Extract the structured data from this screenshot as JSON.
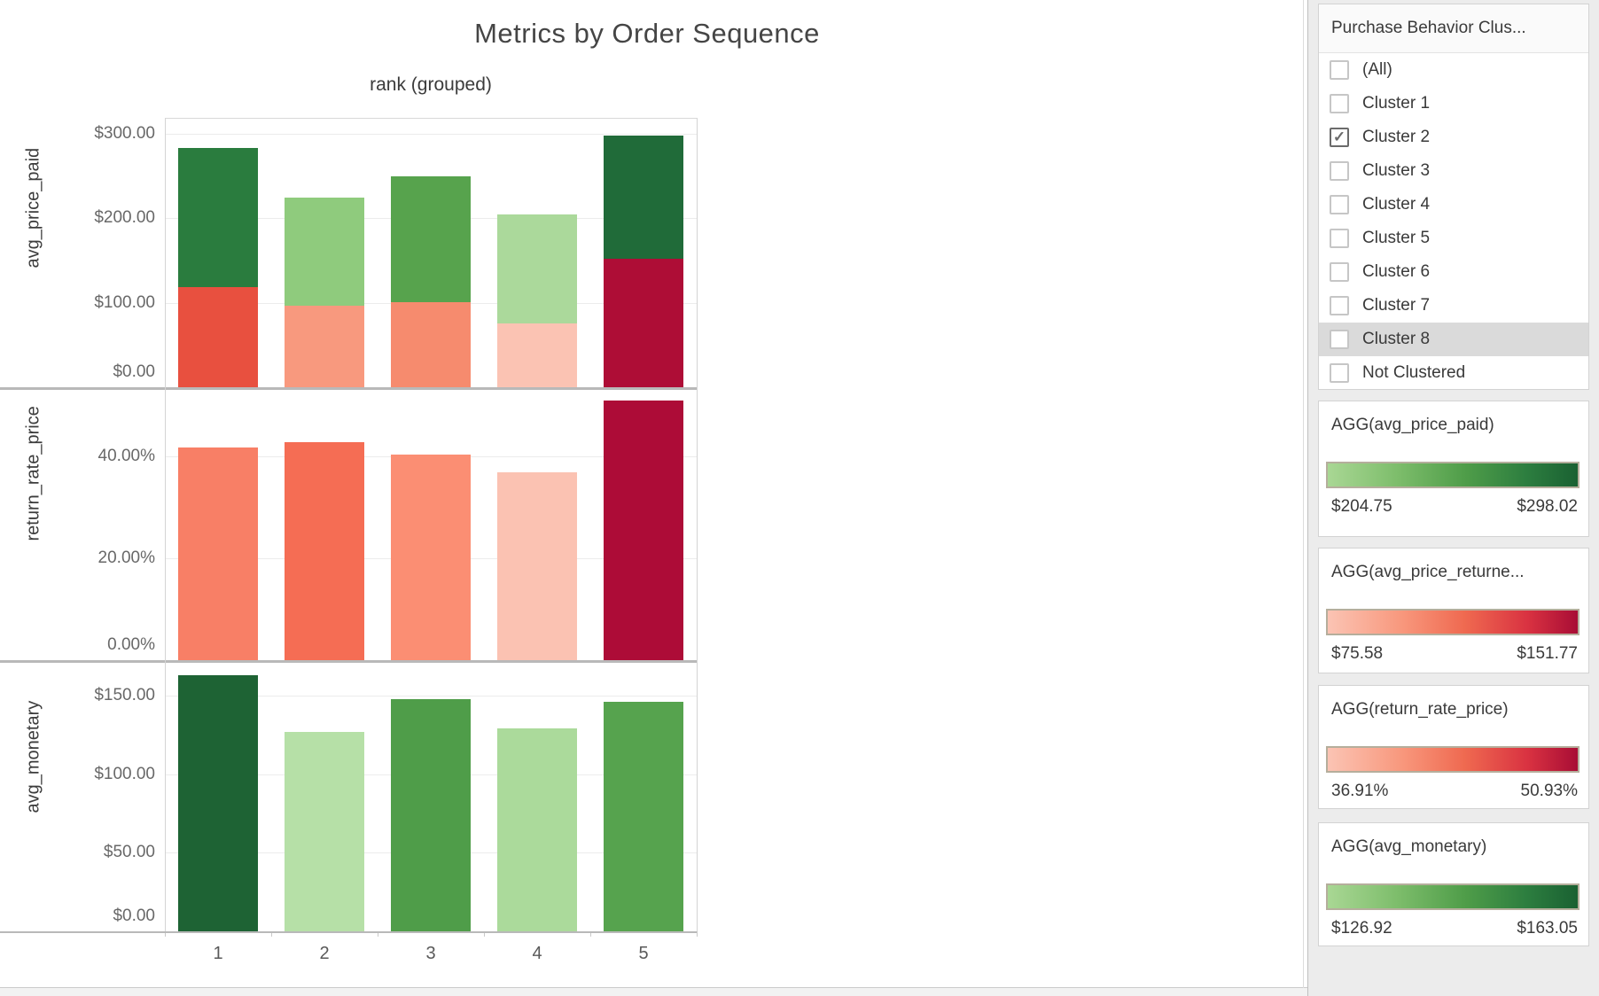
{
  "title": "Metrics by Order Sequence",
  "accent_colors": {
    "green_dark": "#1a6132",
    "green_light": "#a9d794",
    "red_dark": "#a80d35",
    "red_light": "#fbc4b4"
  },
  "filter_panel": {
    "title": "Purchase Behavior Clus...",
    "items": [
      {
        "label": "(All)",
        "checked": false,
        "highlighted": false
      },
      {
        "label": "Cluster 1",
        "checked": false,
        "highlighted": false
      },
      {
        "label": "Cluster 2",
        "checked": true,
        "highlighted": false
      },
      {
        "label": "Cluster 3",
        "checked": false,
        "highlighted": false
      },
      {
        "label": "Cluster 4",
        "checked": false,
        "highlighted": false
      },
      {
        "label": "Cluster 5",
        "checked": false,
        "highlighted": false
      },
      {
        "label": "Cluster 6",
        "checked": false,
        "highlighted": false
      },
      {
        "label": "Cluster 7",
        "checked": false,
        "highlighted": false
      },
      {
        "label": "Cluster 8",
        "checked": false,
        "highlighted": true
      },
      {
        "label": "Not Clustered",
        "checked": false,
        "highlighted": false
      }
    ],
    "check_glyph": "✓"
  },
  "legends": [
    {
      "title": "AGG(avg_price_paid)",
      "ramp": "green",
      "min": "$204.75",
      "max": "$298.02"
    },
    {
      "title": "AGG(avg_price_returne...",
      "ramp": "red",
      "min": "$75.58",
      "max": "$151.77"
    },
    {
      "title": "AGG(return_rate_price)",
      "ramp": "red",
      "min": "36.91%",
      "max": "50.93%"
    },
    {
      "title": "AGG(avg_monetary)",
      "ramp": "green",
      "min": "$126.92",
      "max": "$163.05"
    }
  ],
  "chart_data": {
    "type": "bar",
    "title": "Metrics by Order Sequence",
    "x_title": "rank (grouped)",
    "categories": [
      "1",
      "2",
      "3",
      "4",
      "5"
    ],
    "legend_position": "right-sidebar",
    "grid": true,
    "panels": [
      {
        "ylabel": "avg_price_paid",
        "ylim": [
          0,
          319
        ],
        "yticks": [
          {
            "value": 300,
            "label": "$300.00"
          },
          {
            "value": 200,
            "label": "$200.00"
          },
          {
            "value": 100,
            "label": "$100.00"
          },
          {
            "value": 0,
            "label": "$0.00"
          }
        ],
        "series": [
          {
            "name": "avg_price_paid",
            "values": [
              283.5,
              225.0,
              250.0,
              204.75,
              298.02
            ],
            "colors": [
              "#2a7c3e",
              "#8fcb7d",
              "#57a34d",
              "#abd99b",
              "#206b39"
            ]
          },
          {
            "name": "avg_price_returned",
            "values": [
              118.5,
              96.5,
              100.5,
              75.58,
              151.77
            ],
            "colors": [
              "#e8503f",
              "#f8997e",
              "#f68b6e",
              "#fbc3b3",
              "#ae0d36"
            ]
          }
        ]
      },
      {
        "ylabel": "return_rate_price",
        "ylim": [
          0,
          53
        ],
        "yticks": [
          {
            "value": 40,
            "label": "40.00%"
          },
          {
            "value": 20,
            "label": "20.00%"
          },
          {
            "value": 0,
            "label": "0.00%"
          }
        ],
        "series": [
          {
            "name": "return_rate_price",
            "values": [
              41.7,
              42.8,
              40.3,
              36.91,
              50.93
            ],
            "colors": [
              "#f87f66",
              "#f56d54",
              "#fb8e73",
              "#fbc2b2",
              "#ad0c37"
            ]
          }
        ]
      },
      {
        "ylabel": "avg_monetary",
        "ylim": [
          0,
          171
        ],
        "yticks": [
          {
            "value": 150,
            "label": "$150.00"
          },
          {
            "value": 100,
            "label": "$100.00"
          },
          {
            "value": 50,
            "label": "$50.00"
          },
          {
            "value": 0,
            "label": "$0.00"
          }
        ],
        "series": [
          {
            "name": "avg_monetary",
            "values": [
              163.05,
              126.92,
              147.5,
              129.0,
              146.0
            ],
            "colors": [
              "#1e6334",
              "#b6e0a7",
              "#4f9d49",
              "#abda9b",
              "#56a34e"
            ]
          }
        ]
      }
    ]
  }
}
